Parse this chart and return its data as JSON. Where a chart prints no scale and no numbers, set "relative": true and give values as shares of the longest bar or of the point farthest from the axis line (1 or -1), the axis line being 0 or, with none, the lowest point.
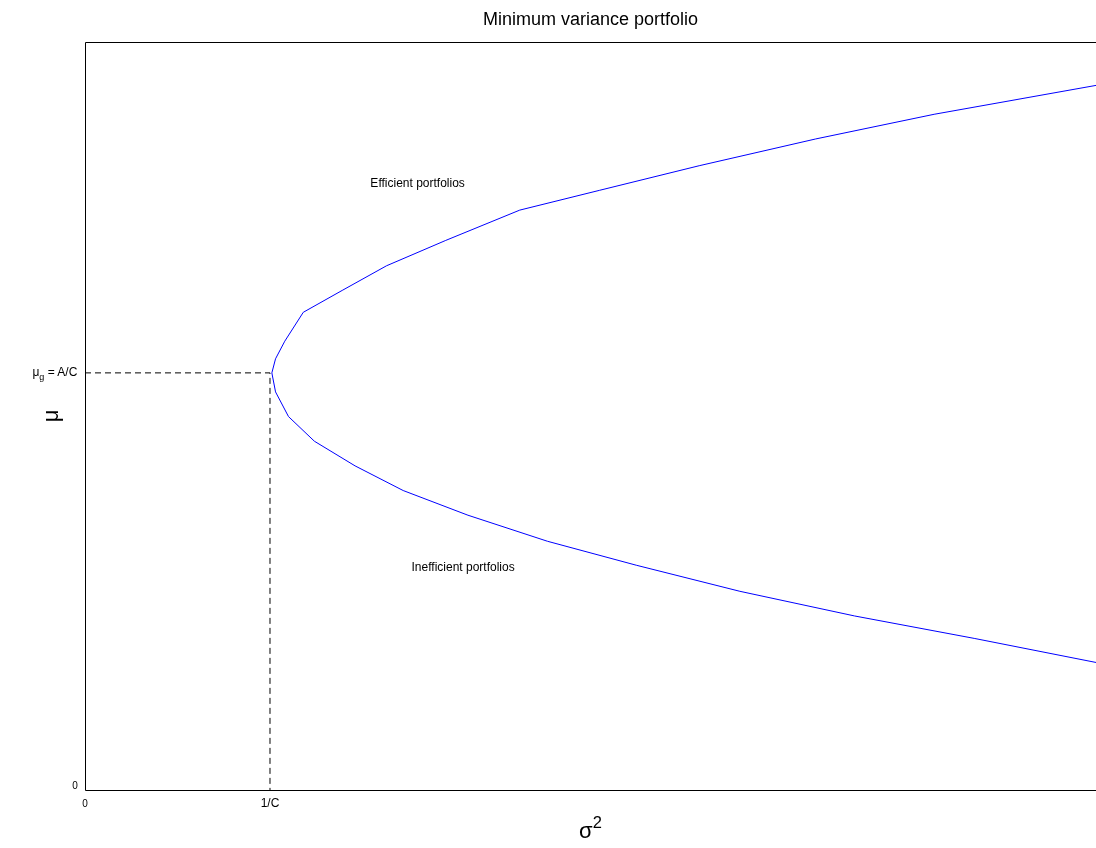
{
  "chart_data": {
    "type": "line",
    "title": "Minimum variance portfolio",
    "xlabel": "σ$^{2}$",
    "ylabel": "μ",
    "relative": true,
    "xlim": [
      0,
      5.465
    ],
    "xticks": [
      0,
      {
        "value": 1,
        "label": "1/C"
      }
    ],
    "grid": false,
    "legend": false,
    "marker": "none",
    "series": [
      {
        "color": "#0000ff",
        "line_style": "solid",
        "x": [
          5.465,
          4.81,
          4.16,
          3.54,
          2.98,
          2.5,
          2.07,
          1.72,
          1.46,
          1.24,
          1.1,
          1.03,
          1.01,
          1.03,
          1.08,
          1.18,
          1.39,
          1.63,
          1.95,
          2.35,
          2.78,
          3.32,
          3.95,
          4.59,
          5.465
        ],
        "values": [
          0.181,
          0.215,
          0.247,
          0.282,
          0.319,
          0.353,
          0.39,
          0.425,
          0.46,
          0.495,
          0.53,
          0.565,
          0.592,
          0.612,
          0.637,
          0.678,
          0.709,
          0.744,
          0.78,
          0.823,
          0.851,
          0.886,
          0.924,
          0.959,
          1
        ]
      },
      {
        "color": "#000000",
        "line_style": "dashed",
        "x": [
          0,
          1,
          1
        ],
        "values": [
          0.592,
          0.592,
          0
        ]
      }
    ],
    "annotations": [
      "Efficient portfolios",
      "Inefficient portfolios",
      "0",
      {
        "text": "μ$_{g}$ = A/C",
        "x": 0,
        "y": 0.592
      }
    ]
  }
}
